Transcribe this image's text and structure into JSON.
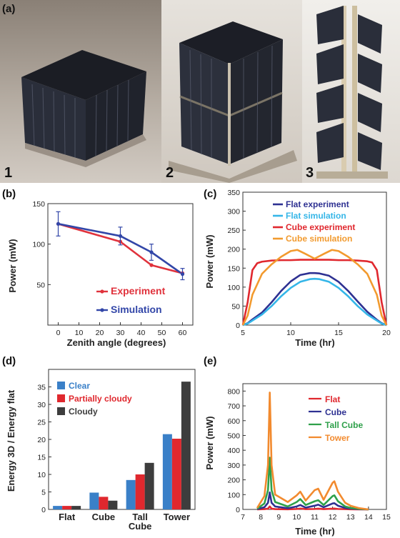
{
  "photos": {
    "label": "(a)",
    "numbers": [
      "1",
      "2",
      "3"
    ]
  },
  "chart_data": [
    {
      "panel": "(b)",
      "type": "line",
      "xlabel": "Zenith angle (degrees)",
      "ylabel": "Power (mW)",
      "xlim": [
        -5,
        65
      ],
      "ylim": [
        0,
        150
      ],
      "xticks": [
        0,
        10,
        20,
        30,
        40,
        50,
        60
      ],
      "yticks": [
        50,
        100,
        150
      ],
      "grid": false,
      "legend_position": "bottom-right",
      "series": [
        {
          "name": "Experiment",
          "color": "#e0323c",
          "x": [
            0,
            30,
            45,
            60
          ],
          "y": [
            125,
            103,
            74,
            64
          ]
        },
        {
          "name": "Simulation",
          "color": "#3246a8",
          "x": [
            0,
            30,
            45,
            60
          ],
          "y": [
            125,
            110,
            90,
            63
          ],
          "error": [
            15,
            11,
            10,
            7
          ]
        }
      ]
    },
    {
      "panel": "(c)",
      "type": "line",
      "xlabel": "Time (hr)",
      "ylabel": "Power (mW)",
      "xlim": [
        5,
        20
      ],
      "ylim": [
        0,
        350
      ],
      "xticks": [
        5,
        10,
        15,
        20
      ],
      "yticks": [
        0,
        50,
        100,
        150,
        200,
        250,
        300,
        350
      ],
      "grid": false,
      "legend_position": "top-center",
      "series": [
        {
          "name": "Flat experiment",
          "color": "#2e3192",
          "x": [
            5,
            5.5,
            6,
            7,
            8,
            9,
            10,
            11,
            12,
            12.5,
            13,
            14,
            15,
            16,
            17,
            18,
            19,
            19.5,
            20
          ],
          "y": [
            0,
            5,
            15,
            33,
            60,
            90,
            115,
            132,
            137,
            137,
            136,
            130,
            114,
            90,
            62,
            35,
            14,
            5,
            0
          ]
        },
        {
          "name": "Flat simulation",
          "color": "#35b6e8",
          "x": [
            5,
            5.5,
            6,
            7,
            8,
            9,
            10,
            11,
            12,
            12.5,
            13,
            14,
            15,
            16,
            17,
            18,
            19,
            19.5,
            20
          ],
          "y": [
            0,
            4,
            12,
            28,
            50,
            76,
            98,
            114,
            121,
            122,
            121,
            114,
            98,
            76,
            50,
            28,
            12,
            4,
            0
          ]
        },
        {
          "name": "Cube experiment",
          "color": "#e0282e",
          "x": [
            5,
            5.5,
            6,
            6.5,
            7,
            8,
            9,
            10,
            11,
            12,
            13,
            14,
            15,
            16,
            17,
            18,
            18.5,
            19,
            19.5,
            20
          ],
          "y": [
            0,
            60,
            145,
            163,
            167,
            170,
            171,
            171,
            172,
            172,
            172,
            172,
            171,
            171,
            170,
            168,
            165,
            145,
            60,
            0
          ]
        },
        {
          "name": "Cube simulation",
          "color": "#f29a2e",
          "x": [
            5,
            5.5,
            6,
            7,
            8,
            9,
            10,
            10.7,
            11.5,
            12.5,
            13.5,
            14.3,
            15,
            16,
            17,
            18,
            19,
            19.5,
            20
          ],
          "y": [
            0,
            25,
            80,
            135,
            160,
            180,
            195,
            198,
            188,
            175,
            188,
            198,
            195,
            180,
            160,
            135,
            80,
            25,
            0
          ]
        }
      ]
    },
    {
      "panel": "(d)",
      "type": "bar",
      "ylabel": "Energy 3D / Energy flat",
      "ylim": [
        0,
        40
      ],
      "yticks": [
        0,
        5,
        10,
        15,
        20,
        25,
        30,
        35
      ],
      "categories": [
        "Flat",
        "Cube",
        "Tall Cube",
        "Tower"
      ],
      "legend_position": "top-left",
      "series": [
        {
          "name": "Clear",
          "color": "#3a80c8",
          "values": [
            1,
            4.8,
            8.4,
            21.5
          ]
        },
        {
          "name": "Partially cloudy",
          "color": "#e0282e",
          "values": [
            1,
            3.6,
            10,
            20.2
          ]
        },
        {
          "name": "Cloudy",
          "color": "#3d3d3d",
          "values": [
            1,
            2.5,
            13.3,
            36.5
          ]
        }
      ]
    },
    {
      "panel": "(e)",
      "type": "line",
      "xlabel": "Time (hr)",
      "ylabel": "Power (mW)",
      "xlim": [
        7,
        15
      ],
      "ylim": [
        0,
        850
      ],
      "xticks": [
        7,
        8,
        9,
        10,
        11,
        12,
        13,
        14,
        15
      ],
      "yticks": [
        0,
        100,
        200,
        300,
        400,
        500,
        600,
        700,
        800
      ],
      "grid": false,
      "legend_position": "top-right",
      "series": [
        {
          "name": "Flat",
          "color": "#e0282e",
          "x": [
            7.8,
            8.2,
            8.4,
            8.5,
            8.6,
            8.8,
            9.5,
            10,
            10.2,
            10.5,
            11,
            11.2,
            11.5,
            12,
            12.1,
            12.3,
            12.7,
            13,
            13.5,
            14
          ],
          "y": [
            0,
            2,
            5,
            20,
            5,
            2,
            1,
            3,
            6,
            2,
            3,
            5,
            2,
            5,
            6,
            3,
            2,
            1,
            0,
            0
          ]
        },
        {
          "name": "Cube",
          "color": "#2e3192",
          "x": [
            7.8,
            8.2,
            8.4,
            8.5,
            8.6,
            8.8,
            9.5,
            10,
            10.2,
            10.5,
            11,
            11.2,
            11.5,
            12,
            12.1,
            12.3,
            12.7,
            13,
            13.5,
            14
          ],
          "y": [
            2,
            15,
            45,
            115,
            45,
            20,
            8,
            20,
            30,
            12,
            25,
            32,
            15,
            40,
            42,
            25,
            10,
            6,
            2,
            0
          ]
        },
        {
          "name": "Tall Cube",
          "color": "#2ea04a",
          "x": [
            7.8,
            8.2,
            8.4,
            8.5,
            8.6,
            8.8,
            9.5,
            10,
            10.2,
            10.5,
            11,
            11.2,
            11.5,
            12,
            12.1,
            12.3,
            12.7,
            13,
            13.5,
            14
          ],
          "y": [
            5,
            40,
            130,
            350,
            130,
            50,
            20,
            50,
            70,
            30,
            55,
            62,
            30,
            90,
            95,
            55,
            20,
            10,
            4,
            0
          ]
        },
        {
          "name": "Tower",
          "color": "#f28a2e",
          "x": [
            7.8,
            8.2,
            8.4,
            8.5,
            8.6,
            8.8,
            9.5,
            10,
            10.2,
            10.5,
            11,
            11.2,
            11.5,
            12,
            12.1,
            12.3,
            12.7,
            13,
            13.5,
            14
          ],
          "y": [
            10,
            90,
            300,
            790,
            300,
            100,
            50,
            95,
            120,
            60,
            130,
            140,
            65,
            180,
            190,
            120,
            45,
            25,
            8,
            0
          ]
        }
      ]
    }
  ]
}
